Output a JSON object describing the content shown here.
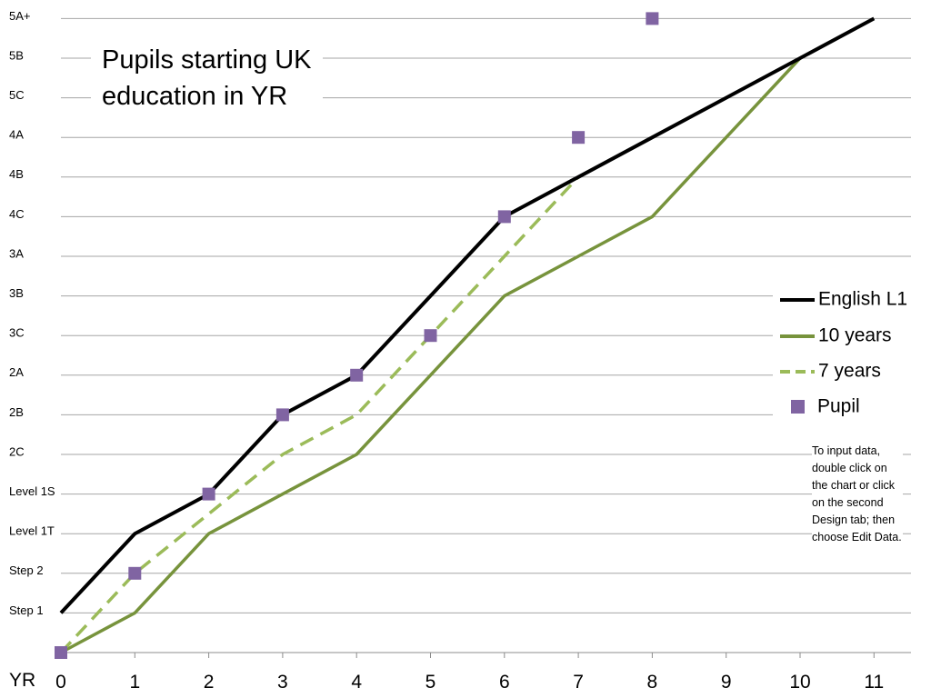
{
  "chart_data": {
    "type": "line",
    "title_lines": [
      "Pupils starting UK",
      "education in YR"
    ],
    "x": [
      0,
      1,
      2,
      3,
      4,
      5,
      6,
      7,
      8,
      9,
      10,
      11
    ],
    "x_ticks": [
      "0",
      "1",
      "2",
      "3",
      "4",
      "5",
      "6",
      "7",
      "8",
      "9",
      "10",
      "11"
    ],
    "x_lead_label": "YR",
    "y_ticks": [
      "Step 1",
      "Step 2",
      "Level 1T",
      "Level 1S",
      "2C",
      "2B",
      "2A",
      "3C",
      "3B",
      "3A",
      "4C",
      "4B",
      "4A",
      "5C",
      "5B",
      "5A+"
    ],
    "ylim": [
      0,
      16
    ],
    "grid": true,
    "series": [
      {
        "name": "English L1",
        "type": "line",
        "style": "solid",
        "color": "#000000",
        "points": [
          [
            0,
            1
          ],
          [
            1,
            3
          ],
          [
            2,
            4
          ],
          [
            3,
            6
          ],
          [
            4,
            7
          ],
          [
            5,
            9
          ],
          [
            6,
            11
          ],
          [
            7,
            12
          ],
          [
            8,
            13
          ],
          [
            9,
            14
          ],
          [
            10,
            15
          ],
          [
            11,
            16
          ]
        ]
      },
      {
        "name": "10 years",
        "type": "line",
        "style": "solid",
        "color": "#77933c",
        "points": [
          [
            0,
            0
          ],
          [
            1,
            1
          ],
          [
            2,
            3
          ],
          [
            3,
            4
          ],
          [
            4,
            5
          ],
          [
            5,
            7
          ],
          [
            6,
            9
          ],
          [
            7,
            10
          ],
          [
            8,
            11
          ],
          [
            9,
            13
          ],
          [
            10,
            15
          ]
        ]
      },
      {
        "name": "7 years",
        "type": "line",
        "style": "dashed",
        "color": "#9bbb59",
        "points": [
          [
            0,
            0
          ],
          [
            1,
            2
          ],
          [
            2,
            3.5
          ],
          [
            3,
            5
          ],
          [
            4,
            6
          ],
          [
            5,
            8
          ],
          [
            6,
            10
          ],
          [
            7,
            12
          ]
        ]
      },
      {
        "name": "Pupil",
        "type": "scatter",
        "color": "#8064a2",
        "points": [
          [
            0,
            0
          ],
          [
            1,
            2
          ],
          [
            2,
            4
          ],
          [
            3,
            6
          ],
          [
            4,
            7
          ],
          [
            5,
            8
          ],
          [
            6,
            11
          ],
          [
            7,
            13
          ],
          [
            8,
            16
          ]
        ]
      }
    ],
    "legend_position": "right",
    "note": "To input data, double click on the chart or click on the second Design tab; then choose Edit Data."
  }
}
